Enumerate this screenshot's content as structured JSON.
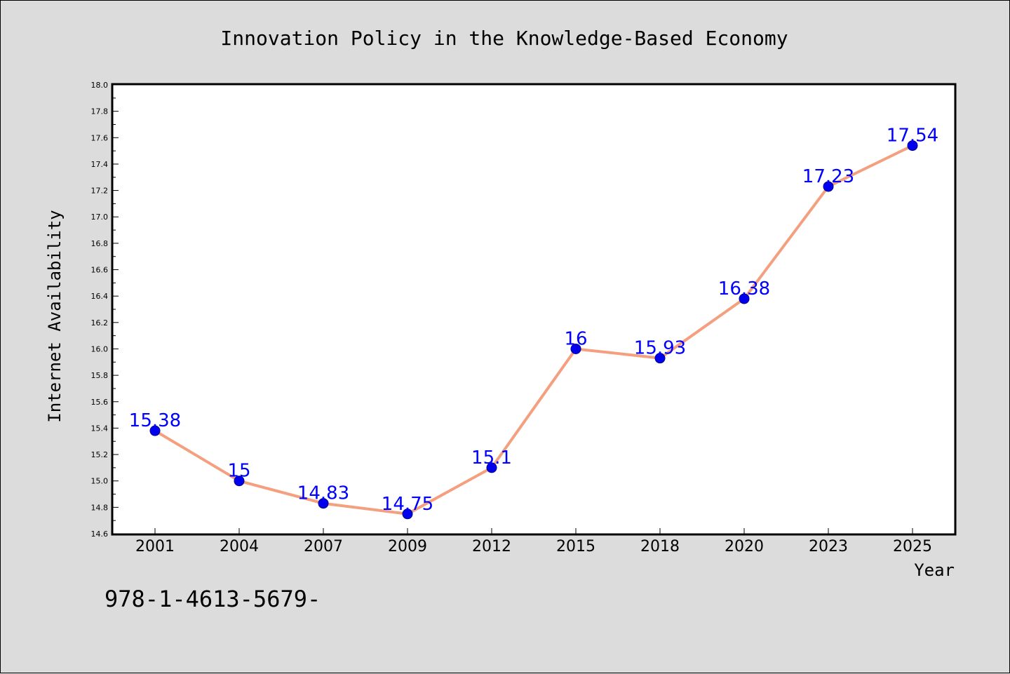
{
  "footer_text": "978-1-4613-5679-",
  "chart_data": {
    "type": "line",
    "title": "Innovation Policy in the Knowledge-Based Economy",
    "xlabel": "Year",
    "ylabel": "Internet Availability",
    "categories": [
      "2001",
      "2004",
      "2007",
      "2009",
      "2012",
      "2015",
      "2018",
      "2020",
      "2023",
      "2025"
    ],
    "series": [
      {
        "values": [
          15.38,
          15.0,
          14.83,
          14.75,
          15.1,
          16.0,
          15.93,
          16.38,
          17.23,
          17.54
        ],
        "data_labels": [
          "15.38",
          "15",
          "14.83",
          "14.75",
          "15.1",
          "16",
          "15.93",
          "16.38",
          "17.23",
          "17.54"
        ]
      }
    ],
    "ylim": [
      14.6,
      18.0
    ],
    "yticks": [
      "14.6",
      "14.8",
      "15.0",
      "15.2",
      "15.4",
      "15.6",
      "15.8",
      "16.0",
      "16.2",
      "16.4",
      "16.6",
      "16.8",
      "17.0",
      "17.2",
      "17.4",
      "17.6",
      "17.8",
      "18.0"
    ],
    "grid": false,
    "line_color": "#f4a07f",
    "marker_color": "#0000ee",
    "label_color": "#0000ff"
  }
}
